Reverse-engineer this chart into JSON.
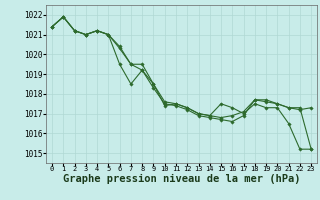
{
  "background_color": "#c8ece9",
  "grid_color": "#b0d8d4",
  "line_color": "#2d6a2d",
  "marker_color": "#2d6a2d",
  "xlabel": "Graphe pression niveau de la mer (hPa)",
  "xlabel_fontsize": 7.5,
  "ylim": [
    1014.5,
    1022.5
  ],
  "xlim": [
    -0.5,
    23.5
  ],
  "yticks": [
    1015,
    1016,
    1017,
    1018,
    1019,
    1020,
    1021,
    1022
  ],
  "xticks": [
    0,
    1,
    2,
    3,
    4,
    5,
    6,
    7,
    8,
    9,
    10,
    11,
    12,
    13,
    14,
    15,
    16,
    17,
    18,
    19,
    20,
    21,
    22,
    23
  ],
  "series": [
    [
      1021.4,
      1021.9,
      1021.2,
      1021.0,
      1021.2,
      1021.0,
      1020.3,
      1019.5,
      1019.2,
      1018.5,
      1017.4,
      1017.5,
      1017.3,
      1017.0,
      1016.9,
      1017.5,
      1017.3,
      1017.0,
      1017.5,
      1017.3,
      1017.3,
      1016.5,
      1015.2,
      1015.2
    ],
    [
      1021.4,
      1021.9,
      1021.2,
      1021.0,
      1021.2,
      1021.0,
      1019.5,
      1018.5,
      1019.2,
      1018.3,
      1017.5,
      1017.4,
      1017.2,
      1016.9,
      1016.8,
      1016.7,
      1016.6,
      1016.9,
      1017.7,
      1017.6,
      1017.5,
      1017.3,
      1017.2,
      1017.3
    ],
    [
      1021.4,
      1021.9,
      1021.2,
      1021.0,
      1021.2,
      1021.0,
      1020.4,
      1019.5,
      1019.5,
      1018.5,
      1017.6,
      1017.5,
      1017.3,
      1017.0,
      1016.9,
      1016.8,
      1016.9,
      1017.1,
      1017.7,
      1017.7,
      1017.5,
      1017.3,
      1017.3,
      1015.2
    ]
  ]
}
